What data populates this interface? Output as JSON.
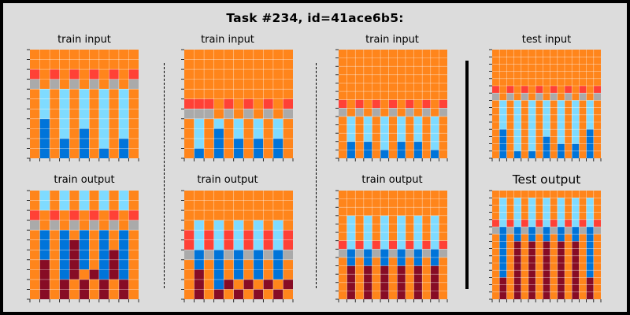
{
  "title": "Task #234, id=41ace6b5:",
  "colors": {
    "0": "#000000",
    "1": "#0074D9",
    "2": "#FF4136",
    "3": "#2ECC40",
    "4": "#FFDC00",
    "5": "#AAAAAA",
    "6": "#F012BE",
    "7": "#FF851B",
    "8": "#7FDBFF",
    "9": "#870C25"
  },
  "panels": [
    {
      "id": "train1-input",
      "label": "train input",
      "label_class": "",
      "grid": [
        "77777777777",
        "77777777777",
        "27272727272",
        "57575757575",
        "78787878787",
        "78787878787",
        "78787878787",
        "71787878787",
        "71787178787",
        "71717178717",
        "71717171717"
      ]
    },
    {
      "id": "train2-input",
      "label": "train input",
      "label_class": "",
      "grid": [
        "77777777777",
        "77777777777",
        "77777777777",
        "77777777777",
        "77777777777",
        "22272727272",
        "55575757575",
        "78787878787",
        "78717878787",
        "78717171717",
        "71717171717"
      ]
    },
    {
      "id": "train3-input",
      "label": "train input",
      "label_class": "",
      "grid": [
        "7777777777777",
        "7777777777777",
        "7777777777777",
        "7777777777777",
        "7777777777777",
        "7777777777777",
        "2727272727272",
        "5757575757575",
        "7878787878787",
        "7878787878787",
        "7878787878787",
        "7171787171787",
        "7171717171717"
      ]
    },
    {
      "id": "test-input",
      "label": "test input",
      "label_class": "",
      "grid": [
        "777777777777777",
        "777777777777777",
        "777777777777777",
        "777777777777777",
        "777777777777777",
        "272727272727272",
        "575757575757575",
        "787878787878787",
        "787878787878787",
        "787878787878787",
        "787878787878787",
        "717878787878717",
        "717878717878717",
        "717878717171717",
        "717171717171717"
      ]
    },
    {
      "id": "train1-output",
      "label": "train output",
      "label_class": "",
      "grid": [
        "78787878787",
        "78787878787",
        "27272727272",
        "57575757575",
        "71717171717",
        "71719171717",
        "71719171917",
        "79719171917",
        "79719791917",
        "79797979797",
        "79797979797"
      ]
    },
    {
      "id": "train2-output",
      "label": "train output",
      "label_class": "",
      "grid": [
        "77777777777",
        "77777777777",
        "77777777777",
        "78787878787",
        "28282828282",
        "28282828282",
        "51515151515",
        "71717171717",
        "79717171717",
        "79719797979",
        "79797979797"
      ]
    },
    {
      "id": "train3-output",
      "label": "train output",
      "label_class": "",
      "grid": [
        "7777777777777",
        "7777777777777",
        "7777777777777",
        "7878787878787",
        "7878787878787",
        "7878787878787",
        "2828282828282",
        "5151515151515",
        "7171717171717",
        "7979797979797",
        "7979797979797",
        "7979797979797",
        "7979797979797"
      ]
    },
    {
      "id": "test-output",
      "label": "Test output",
      "label_class": "big",
      "grid": [
        "777777777777777",
        "787878787878787",
        "787878787878787",
        "787878787878787",
        "282828282828282",
        "515151515151515",
        "717171717171717",
        "717979797979717",
        "717979797979717",
        "717979797979717",
        "717979797979717",
        "717979797979717",
        "797979797979797",
        "797979797979797",
        "797979797979797"
      ]
    }
  ]
}
